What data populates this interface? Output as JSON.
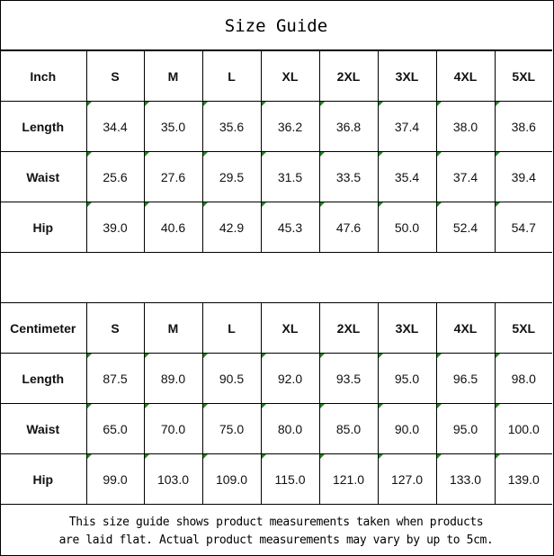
{
  "title": "Size Guide",
  "tables": [
    {
      "unit": "Inch",
      "sizes": [
        "S",
        "M",
        "L",
        "XL",
        "2XL",
        "3XL",
        "4XL",
        "5XL"
      ],
      "rows": [
        {
          "label": "Length",
          "values": [
            "34.4",
            "35.0",
            "35.6",
            "36.2",
            "36.8",
            "37.4",
            "38.0",
            "38.6"
          ]
        },
        {
          "label": "Waist",
          "values": [
            "25.6",
            "27.6",
            "29.5",
            "31.5",
            "33.5",
            "35.4",
            "37.4",
            "39.4"
          ]
        },
        {
          "label": "Hip",
          "values": [
            "39.0",
            "40.6",
            "42.9",
            "45.3",
            "47.6",
            "50.0",
            "52.4",
            "54.7"
          ]
        }
      ]
    },
    {
      "unit": "Centimeter",
      "sizes": [
        "S",
        "M",
        "L",
        "XL",
        "2XL",
        "3XL",
        "4XL",
        "5XL"
      ],
      "rows": [
        {
          "label": "Length",
          "values": [
            "87.5",
            "89.0",
            "90.5",
            "92.0",
            "93.5",
            "95.0",
            "96.5",
            "98.0"
          ]
        },
        {
          "label": "Waist",
          "values": [
            "65.0",
            "70.0",
            "75.0",
            "80.0",
            "85.0",
            "90.0",
            "95.0",
            "100.0"
          ]
        },
        {
          "label": "Hip",
          "values": [
            "99.0",
            "103.0",
            "109.0",
            "115.0",
            "121.0",
            "127.0",
            "133.0",
            "139.0"
          ]
        }
      ]
    }
  ],
  "note": {
    "line1": "This size guide shows product measurements taken when products",
    "line2": "are laid flat. Actual product measurements may vary by up to 5cm."
  },
  "colors": {
    "error_marker": "#1a8a1a"
  }
}
